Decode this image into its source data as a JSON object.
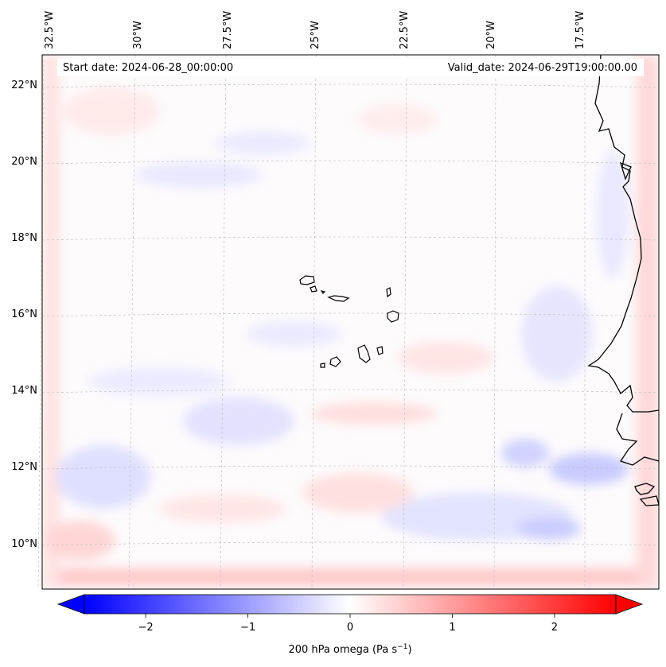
{
  "header": {
    "start_date": "Start date: 2024-06-28_00:00:00",
    "valid_date": "Valid_date: 2024-06-29T19:00:00.00"
  },
  "map": {
    "lon_labels": [
      "32.5°W",
      "30°W",
      "27.5°W",
      "25°W",
      "22.5°W",
      "20°W",
      "17.5°W"
    ],
    "lat_labels": [
      "22°N",
      "20°N",
      "18°N",
      "16°N",
      "14°N",
      "12°N",
      "10°N"
    ],
    "coastline_color": "#000000",
    "gridline_color": "#bbbbbb"
  },
  "colorbar": {
    "ticks": [
      "−2",
      "−1",
      "0",
      "1",
      "2"
    ],
    "tick_values": [
      -2,
      -1,
      0,
      1,
      2
    ],
    "range": [
      -2.6,
      2.6
    ],
    "low_color": "#0000ff",
    "mid_color": "#ffffff",
    "high_color": "#ff0000",
    "label": "200 hPa omega (Pa s",
    "label_exp": "−1",
    "label_close": ")"
  }
}
